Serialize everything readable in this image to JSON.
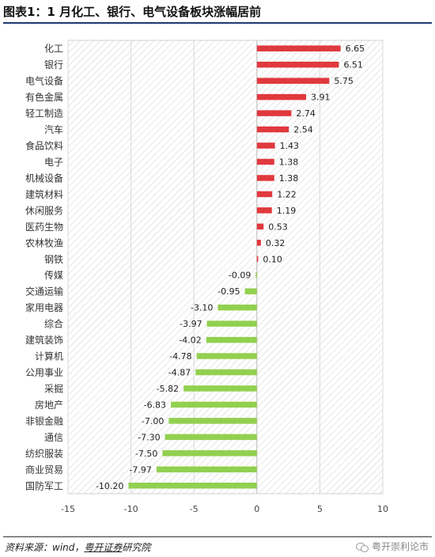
{
  "header": {
    "title": "图表1：1 月化工、银行、电气设备板块涨幅居前"
  },
  "footer": {
    "source_prefix": "资料来源：wind，",
    "source_org": "粤开证券",
    "source_suffix": "研究院",
    "watermark": "粤开崇利论市"
  },
  "colors": {
    "positive": "#e0393e",
    "negative": "#92d050",
    "axis": "#888888",
    "hatch": "#c8c8c8"
  },
  "chart_data": {
    "type": "bar",
    "orientation": "horizontal",
    "title": "",
    "xlabel": "",
    "ylabel": "",
    "xlim": [
      -15,
      10
    ],
    "xticks": [
      -15,
      -10,
      -5,
      0,
      5,
      10
    ],
    "grid": true,
    "legend": "none",
    "categories": [
      "化工",
      "银行",
      "电气设备",
      "有色金属",
      "轻工制造",
      "汽车",
      "食品饮料",
      "电子",
      "机械设备",
      "建筑材料",
      "休闲服务",
      "医药生物",
      "农林牧渔",
      "钢铁",
      "传媒",
      "交通运输",
      "家用电器",
      "综合",
      "建筑装饰",
      "计算机",
      "公用事业",
      "采掘",
      "房地产",
      "非银金融",
      "通信",
      "纺织服装",
      "商业贸易",
      "国防军工"
    ],
    "values": [
      6.65,
      6.51,
      5.75,
      3.91,
      2.74,
      2.54,
      1.43,
      1.38,
      1.38,
      1.22,
      1.19,
      0.53,
      0.32,
      0.1,
      -0.09,
      -0.95,
      -3.1,
      -3.97,
      -4.02,
      -4.78,
      -4.87,
      -5.82,
      -6.83,
      -7.0,
      -7.3,
      -7.5,
      -7.97,
      -10.2
    ],
    "value_labels": [
      "6.65",
      "6.51",
      "5.75",
      "3.91",
      "2.74",
      "2.54",
      "1.43",
      "1.38",
      "1.38",
      "1.22",
      "1.19",
      "0.53",
      "0.32",
      "0.10",
      "-0.09",
      "-0.95",
      "-3.10",
      "-3.97",
      "-4.02",
      "-4.78",
      "-4.87",
      "-5.82",
      "-6.83",
      "-7.00",
      "-7.30",
      "-7.50",
      "-7.97",
      "-10.20"
    ]
  }
}
